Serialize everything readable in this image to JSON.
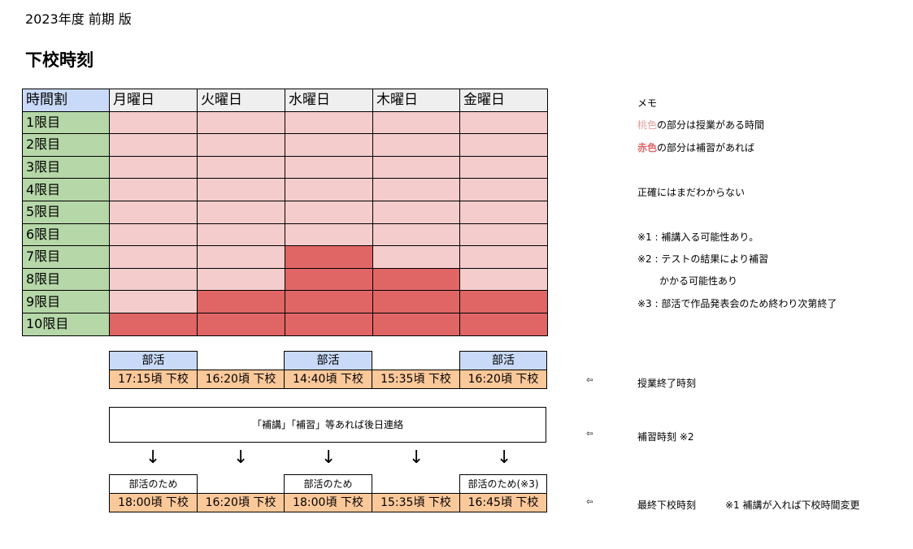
{
  "edition": "2023年度 前期 版",
  "title": "下校時刻",
  "timetable": {
    "corner": "時間割",
    "days": [
      "月曜日",
      "火曜日",
      "水曜日",
      "木曜日",
      "金曜日"
    ],
    "periods": [
      {
        "label": "1限目",
        "cells": [
          "pink",
          "pink",
          "pink",
          "pink",
          "pink"
        ]
      },
      {
        "label": "2限目",
        "cells": [
          "pink",
          "pink",
          "pink",
          "pink",
          "pink"
        ]
      },
      {
        "label": "3限目",
        "cells": [
          "pink",
          "pink",
          "pink",
          "pink",
          "pink"
        ]
      },
      {
        "label": "4限目",
        "cells": [
          "pink",
          "pink",
          "pink",
          "pink",
          "pink"
        ]
      },
      {
        "label": "5限目",
        "cells": [
          "pink",
          "pink",
          "pink",
          "pink",
          "pink"
        ]
      },
      {
        "label": "6限目",
        "cells": [
          "pink",
          "pink",
          "pink",
          "pink",
          "pink"
        ]
      },
      {
        "label": "7限目",
        "cells": [
          "pink",
          "pink",
          "red",
          "pink",
          "pink"
        ]
      },
      {
        "label": "8限目",
        "cells": [
          "pink",
          "pink",
          "red",
          "red",
          "pink"
        ]
      },
      {
        "label": "9限目",
        "cells": [
          "pink",
          "red",
          "red",
          "red",
          "red"
        ]
      },
      {
        "label": "10限目",
        "cells": [
          "red",
          "red",
          "red",
          "red",
          "red"
        ]
      }
    ]
  },
  "colors": {
    "pink": "#f4cccc",
    "red": "#e06666",
    "period": "#b6d7a8",
    "club": "#c9daf8",
    "time": "#fbc89a"
  },
  "end_of_class": {
    "club": [
      "部活",
      "",
      "部活",
      "",
      "部活"
    ],
    "times": [
      "17:15頃 下校",
      "16:20頃 下校",
      "14:40頃 下校",
      "15:35頃 下校",
      "16:20頃 下校"
    ]
  },
  "notice": "「補講」「補習」等あれば後日連絡",
  "arrow": "↓",
  "final": {
    "club": [
      "部活のため",
      "",
      "部活のため",
      "",
      "部活のため(※3)"
    ],
    "times": [
      "18:00頃 下校",
      "16:20頃 下校",
      "18:00頃 下校",
      "15:35頃 下校",
      "16:45頃 下校"
    ]
  },
  "memo": {
    "heading": "メモ",
    "line1_colored": "桃色",
    "line1_rest": "の部分は授業がある時間",
    "line2_colored": "赤色",
    "line2_rest": "の部分は補習があれば",
    "line3": "正確にはまだわからない",
    "note1": "※1 : 補講入る可能性あり。",
    "note2a": "※2 : テストの結果により補習",
    "note2b": "かかる可能性あり",
    "note3": "※3 : 部活で作品発表会のため終わり次第終了"
  },
  "side_labels": {
    "pointer_icon": "left-pointer-icon",
    "pointer": "⇦",
    "end_time": "授業終了時刻",
    "makeup_time": "補習時刻 ※2",
    "final_time": "最終下校時刻",
    "final_note": "※1 補講が入れば下校時間変更"
  }
}
